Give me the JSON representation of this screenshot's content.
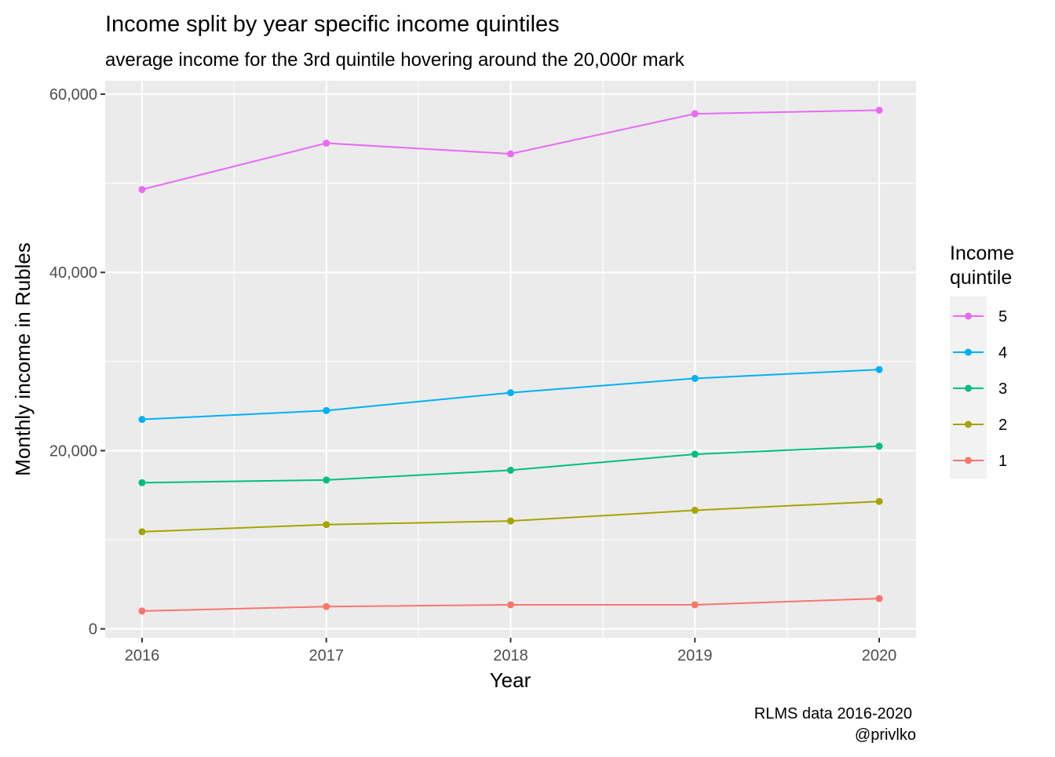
{
  "chart_data": {
    "type": "line",
    "title": "Income split by year specific income quintiles",
    "subtitle": "average income for the 3rd quintile hovering around the 20,000r mark",
    "xlabel": "Year",
    "ylabel": "Monthly income in Rubles",
    "caption_line1": "RLMS data 2016-2020",
    "caption_line2": "@privlko",
    "legend_title_line1": "Income",
    "legend_title_line2": "quintile",
    "legend_placement": "right",
    "grid": true,
    "x": [
      2016,
      2017,
      2018,
      2019,
      2020
    ],
    "xlim": [
      2015.8,
      2020.2
    ],
    "ylim": [
      -1000,
      61500
    ],
    "y_ticks": [
      0,
      20000,
      40000,
      60000
    ],
    "y_tick_labels": [
      "0",
      "20,000",
      "40,000",
      "60,000"
    ],
    "y_minor_ticks": [
      10000,
      30000,
      50000
    ],
    "x_tick_labels": [
      "2016",
      "2017",
      "2018",
      "2019",
      "2020"
    ],
    "x_minor_ticks": [
      2016.5,
      2017.5,
      2018.5,
      2019.5
    ],
    "series": [
      {
        "name": "5",
        "color": "#E76BF3",
        "values": [
          49300,
          54500,
          53300,
          57800,
          58200
        ]
      },
      {
        "name": "4",
        "color": "#00B0F6",
        "values": [
          23500,
          24500,
          26500,
          28100,
          29100
        ]
      },
      {
        "name": "3",
        "color": "#00BF7D",
        "values": [
          16400,
          16700,
          17800,
          19600,
          20500
        ]
      },
      {
        "name": "2",
        "color": "#A3A500",
        "values": [
          10900,
          11700,
          12100,
          13300,
          14300
        ]
      },
      {
        "name": "1",
        "color": "#F8766D",
        "values": [
          2000,
          2500,
          2700,
          2700,
          3400
        ]
      }
    ]
  }
}
